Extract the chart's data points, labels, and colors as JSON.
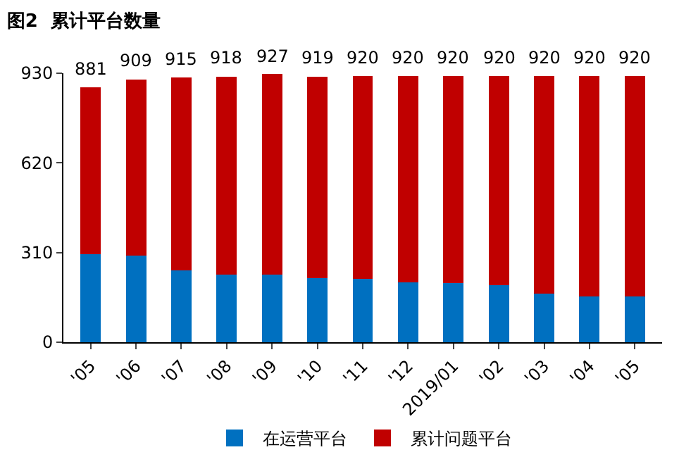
{
  "chart_data": {
    "type": "bar",
    "title": "图2  累计平台数量",
    "stacked": true,
    "categories": [
      "'05",
      "'06",
      "'07",
      "'08",
      "'09",
      "'10",
      "'11",
      "'12",
      "2019/01",
      "'02",
      "'03",
      "'04",
      "'05"
    ],
    "series": [
      {
        "name": "在运营平台",
        "color": "#0070c0",
        "values": [
          304,
          300,
          248,
          233,
          233,
          221,
          218,
          207,
          204,
          198,
          167,
          159,
          159
        ]
      },
      {
        "name": "累计问题平台",
        "color": "#c00000",
        "values": [
          577,
          609,
          667,
          685,
          694,
          698,
          702,
          713,
          716,
          722,
          753,
          761,
          761
        ]
      }
    ],
    "totals": [
      "881",
      "909",
      "915",
      "918",
      "927",
      "919",
      "920",
      "920",
      "920",
      "920",
      "920",
      "920",
      "920"
    ],
    "ylim": [
      0,
      930
    ],
    "yticks": [
      0,
      310,
      620,
      930
    ],
    "grid": false,
    "legend": "bottom"
  }
}
